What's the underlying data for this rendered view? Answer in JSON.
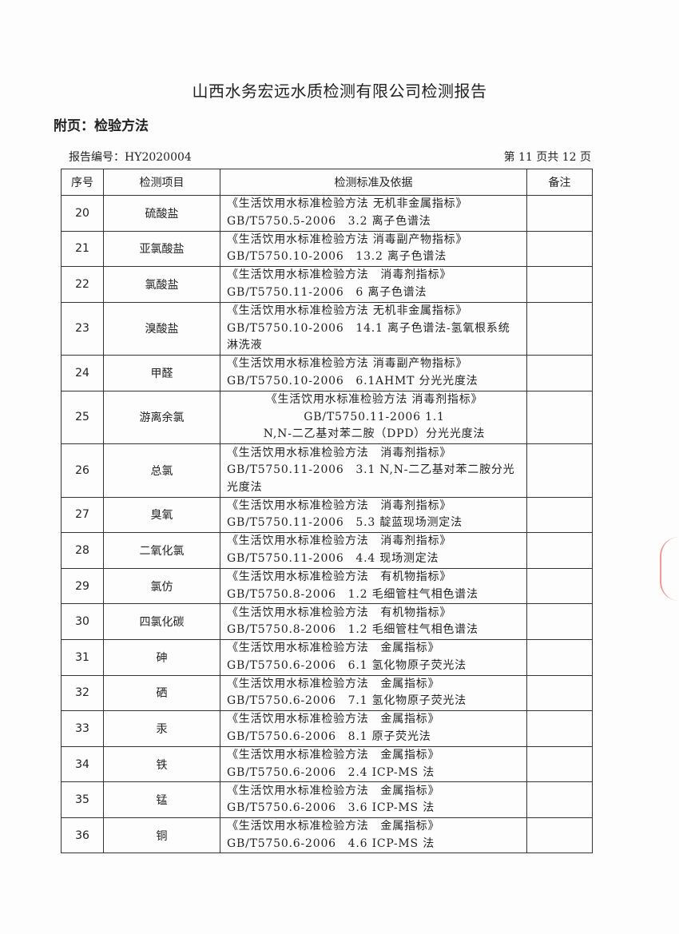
{
  "document": {
    "title": "山西水务宏远水质检测有限公司检测报告",
    "subtitle": "附页：检验方法",
    "report_no": "报告编号：HY2020004",
    "page_info": "第 11 页共 12 页"
  },
  "table": {
    "headers": [
      "序号",
      "检测项目",
      "检测标准及依据",
      "备注"
    ],
    "rows": [
      {
        "no": "20",
        "item": "硫酸盐",
        "method": [
          "《生活饮用水标准检验方法 无机非金属指标》",
          "GB/T5750.5-2006　3.2 离子色谱法"
        ],
        "note": ""
      },
      {
        "no": "21",
        "item": "亚氯酸盐",
        "method": [
          "《生活饮用水标准检验方法 消毒副产物指标》",
          "GB/T5750.10-2006　13.2 离子色谱法"
        ],
        "note": ""
      },
      {
        "no": "22",
        "item": "氯酸盐",
        "method": [
          "《生活饮用水标准检验方法　消毒剂指标》",
          "GB/T5750.11-2006　6 离子色谱法"
        ],
        "note": ""
      },
      {
        "no": "23",
        "item": "溴酸盐",
        "method": [
          "《生活饮用水标准检验方法 无机非金属指标》",
          "GB/T5750.10-2006　14.1 离子色谱法-氢氧根系统",
          "淋洗液"
        ],
        "note": ""
      },
      {
        "no": "24",
        "item": "甲醛",
        "method": [
          "《生活饮用水标准检验方法 消毒副产物指标》",
          "GB/T5750.10-2006　6.1AHMT 分光光度法"
        ],
        "note": ""
      },
      {
        "no": "25",
        "item": "游离余氯",
        "method": [
          "《生活饮用水标准检验方法 消毒剂指标》",
          "GB/T5750.11-2006 1.1",
          "N,N-二乙基对苯二胺（DPD）分光光度法"
        ],
        "note": "",
        "center": true
      },
      {
        "no": "26",
        "item": "总氯",
        "method": [
          "《生活饮用水标准检验方法　消毒剂指标》",
          "GB/T5750.11-2006　3.1 N,N-二乙基对苯二胺分光",
          "光度法"
        ],
        "note": ""
      },
      {
        "no": "27",
        "item": "臭氧",
        "method": [
          "《生活饮用水标准检验方法　消毒剂指标》",
          "GB/T5750.11-2006　5.3 靛蓝现场测定法"
        ],
        "note": ""
      },
      {
        "no": "28",
        "item": "二氧化氯",
        "method": [
          "《生活饮用水标准检验方法　消毒剂指标》",
          "GB/T5750.11-2006　4.4 现场测定法"
        ],
        "note": ""
      },
      {
        "no": "29",
        "item": "氯仿",
        "method": [
          "《生活饮用水标准检验方法　有机物指标》",
          "GB/T5750.8-2006　1.2 毛细管柱气相色谱法"
        ],
        "note": ""
      },
      {
        "no": "30",
        "item": "四氯化碳",
        "method": [
          "《生活饮用水标准检验方法　有机物指标》",
          "GB/T5750.8-2006　1.2 毛细管柱气相色谱法"
        ],
        "note": ""
      },
      {
        "no": "31",
        "item": "砷",
        "method": [
          "《生活饮用水标准检验方法　金属指标》",
          "GB/T5750.6-2006　6.1 氢化物原子荧光法"
        ],
        "note": ""
      },
      {
        "no": "32",
        "item": "硒",
        "method": [
          "《生活饮用水标准检验方法　金属指标》",
          "GB/T5750.6-2006　7.1 氢化物原子荧光法"
        ],
        "note": ""
      },
      {
        "no": "33",
        "item": "汞",
        "method": [
          "《生活饮用水标准检验方法　金属指标》",
          "GB/T5750.6-2006　8.1 原子荧光法"
        ],
        "note": ""
      },
      {
        "no": "34",
        "item": "铁",
        "method": [
          "《生活饮用水标准检验方法　金属指标》",
          "GB/T5750.6-2006　2.4 ICP-MS 法"
        ],
        "note": ""
      },
      {
        "no": "35",
        "item": "锰",
        "method": [
          "《生活饮用水标准检验方法　金属指标》",
          "GB/T5750.6-2006　3.6 ICP-MS 法"
        ],
        "note": ""
      },
      {
        "no": "36",
        "item": "铜",
        "method": [
          "《生活饮用水标准检验方法　金属指标》",
          "GB/T5750.6-2006　4.6 ICP-MS 法"
        ],
        "note": ""
      }
    ]
  }
}
